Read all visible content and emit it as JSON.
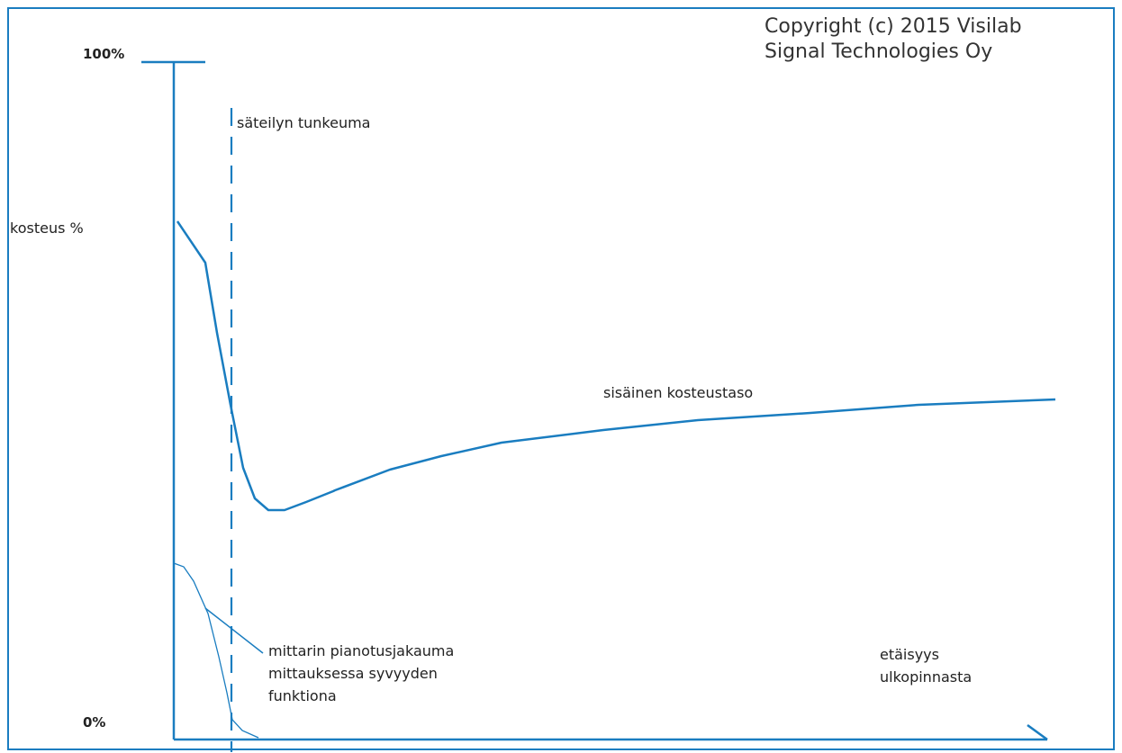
{
  "diagram": {
    "copyright_line1": "Copyright (c) 2015 Visilab",
    "copyright_line2": "Signal Technologies Oy",
    "y_top_label": "100%",
    "y_bottom_label": "0%",
    "y_axis_label": "kosteus %",
    "penetration_label": "säteilyn tunkeuma",
    "moisture_curve_label": "sisäinen kosteustaso",
    "weighting_label_line1": "mittarin pianotusjakauma",
    "weighting_label_line2": "mittauksessa syvyyden",
    "weighting_label_line3": "funktiona",
    "x_axis_label_line1": "etäisyys",
    "x_axis_label_line2": "ulkopinnasta"
  },
  "colors": {
    "line": "#1a7dc0",
    "frame": "#1a7dc0",
    "text": "#222222"
  }
}
